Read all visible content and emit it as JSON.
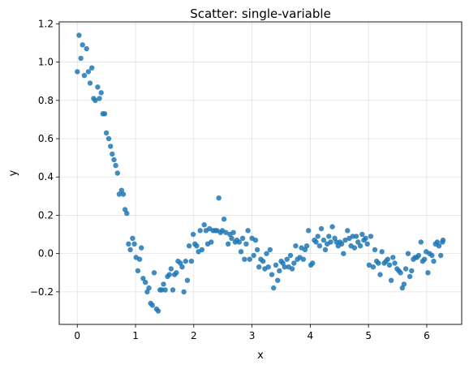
{
  "chart_data": {
    "type": "scatter",
    "title": "Scatter: single-variable",
    "xlabel": "x",
    "ylabel": "y",
    "xlim": [
      -0.31,
      6.6
    ],
    "ylim": [
      -0.37,
      1.21
    ],
    "xticks": [
      0,
      1,
      2,
      3,
      4,
      5,
      6
    ],
    "yticks": [
      -0.2,
      0.0,
      0.2,
      0.4,
      0.6,
      0.8,
      1.0,
      1.2
    ],
    "ytick_labels": [
      "−0.2",
      "0.0",
      "0.2",
      "0.4",
      "0.6",
      "0.8",
      "1.0",
      "1.2"
    ],
    "grid": true,
    "point_color": "#1f77b4",
    "points": [
      [
        0.0,
        0.95
      ],
      [
        0.03,
        1.14
      ],
      [
        0.06,
        1.02
      ],
      [
        0.09,
        1.09
      ],
      [
        0.12,
        0.93
      ],
      [
        0.16,
        1.07
      ],
      [
        0.19,
        0.95
      ],
      [
        0.22,
        0.89
      ],
      [
        0.25,
        0.97
      ],
      [
        0.28,
        0.81
      ],
      [
        0.31,
        0.8
      ],
      [
        0.35,
        0.87
      ],
      [
        0.38,
        0.81
      ],
      [
        0.41,
        0.84
      ],
      [
        0.44,
        0.73
      ],
      [
        0.47,
        0.73
      ],
      [
        0.5,
        0.63
      ],
      [
        0.54,
        0.6
      ],
      [
        0.57,
        0.56
      ],
      [
        0.6,
        0.52
      ],
      [
        0.63,
        0.49
      ],
      [
        0.66,
        0.46
      ],
      [
        0.69,
        0.42
      ],
      [
        0.72,
        0.31
      ],
      [
        0.76,
        0.33
      ],
      [
        0.79,
        0.31
      ],
      [
        0.82,
        0.23
      ],
      [
        0.85,
        0.21
      ],
      [
        0.88,
        0.05
      ],
      [
        0.91,
        0.02
      ],
      [
        0.95,
        0.08
      ],
      [
        0.98,
        0.05
      ],
      [
        1.01,
        -0.02
      ],
      [
        1.04,
        -0.09
      ],
      [
        1.07,
        -0.03
      ],
      [
        1.1,
        0.03
      ],
      [
        1.13,
        -0.13
      ],
      [
        1.17,
        -0.15
      ],
      [
        1.2,
        -0.2
      ],
      [
        1.23,
        -0.18
      ],
      [
        1.26,
        -0.26
      ],
      [
        1.29,
        -0.27
      ],
      [
        1.32,
        -0.1
      ],
      [
        1.36,
        -0.29
      ],
      [
        1.39,
        -0.3
      ],
      [
        1.42,
        -0.19
      ],
      [
        1.45,
        -0.19
      ],
      [
        1.48,
        -0.16
      ],
      [
        1.51,
        -0.19
      ],
      [
        1.55,
        -0.12
      ],
      [
        1.58,
        -0.11
      ],
      [
        1.61,
        -0.08
      ],
      [
        1.64,
        -0.19
      ],
      [
        1.67,
        -0.11
      ],
      [
        1.7,
        -0.1
      ],
      [
        1.73,
        -0.04
      ],
      [
        1.77,
        -0.05
      ],
      [
        1.8,
        -0.07
      ],
      [
        1.83,
        -0.2
      ],
      [
        1.86,
        -0.04
      ],
      [
        1.89,
        -0.14
      ],
      [
        1.92,
        0.04
      ],
      [
        1.96,
        -0.04
      ],
      [
        1.99,
        0.1
      ],
      [
        2.02,
        0.05
      ],
      [
        2.05,
        0.04
      ],
      [
        2.08,
        0.01
      ],
      [
        2.11,
        0.12
      ],
      [
        2.14,
        0.02
      ],
      [
        2.18,
        0.15
      ],
      [
        2.21,
        0.12
      ],
      [
        2.24,
        0.05
      ],
      [
        2.27,
        0.13
      ],
      [
        2.3,
        0.06
      ],
      [
        2.33,
        0.12
      ],
      [
        2.37,
        0.12
      ],
      [
        2.4,
        0.12
      ],
      [
        2.43,
        0.29
      ],
      [
        2.46,
        0.11
      ],
      [
        2.49,
        0.12
      ],
      [
        2.52,
        0.18
      ],
      [
        2.55,
        0.11
      ],
      [
        2.59,
        0.05
      ],
      [
        2.62,
        0.1
      ],
      [
        2.65,
        0.08
      ],
      [
        2.68,
        0.11
      ],
      [
        2.71,
        0.06
      ],
      [
        2.74,
        0.07
      ],
      [
        2.78,
        0.06
      ],
      [
        2.81,
        0.01
      ],
      [
        2.84,
        0.08
      ],
      [
        2.87,
        -0.03
      ],
      [
        2.9,
        0.05
      ],
      [
        2.93,
        0.12
      ],
      [
        2.96,
        -0.03
      ],
      [
        3.0,
        0.08
      ],
      [
        3.03,
        -0.01
      ],
      [
        3.06,
        0.07
      ],
      [
        3.09,
        0.02
      ],
      [
        3.12,
        -0.07
      ],
      [
        3.15,
        -0.03
      ],
      [
        3.19,
        -0.04
      ],
      [
        3.22,
        -0.08
      ],
      [
        3.25,
        0.0
      ],
      [
        3.28,
        -0.07
      ],
      [
        3.31,
        0.02
      ],
      [
        3.34,
        -0.11
      ],
      [
        3.37,
        -0.18
      ],
      [
        3.41,
        -0.06
      ],
      [
        3.44,
        -0.14
      ],
      [
        3.47,
        -0.09
      ],
      [
        3.5,
        -0.04
      ],
      [
        3.53,
        -0.05
      ],
      [
        3.56,
        -0.07
      ],
      [
        3.6,
        -0.03
      ],
      [
        3.63,
        -0.07
      ],
      [
        3.66,
        -0.01
      ],
      [
        3.69,
        -0.08
      ],
      [
        3.72,
        -0.05
      ],
      [
        3.75,
        0.04
      ],
      [
        3.78,
        -0.03
      ],
      [
        3.82,
        -0.02
      ],
      [
        3.85,
        0.03
      ],
      [
        3.88,
        -0.03
      ],
      [
        3.91,
        0.02
      ],
      [
        3.94,
        0.04
      ],
      [
        3.97,
        0.12
      ],
      [
        4.01,
        -0.06
      ],
      [
        4.04,
        -0.05
      ],
      [
        4.07,
        0.07
      ],
      [
        4.1,
        0.06
      ],
      [
        4.13,
        0.09
      ],
      [
        4.16,
        0.04
      ],
      [
        4.19,
        0.13
      ],
      [
        4.23,
        0.07
      ],
      [
        4.26,
        0.02
      ],
      [
        4.29,
        0.05
      ],
      [
        4.32,
        0.09
      ],
      [
        4.35,
        0.06
      ],
      [
        4.38,
        0.14
      ],
      [
        4.42,
        0.08
      ],
      [
        4.45,
        0.06
      ],
      [
        4.48,
        0.04
      ],
      [
        4.51,
        0.06
      ],
      [
        4.54,
        0.05
      ],
      [
        4.57,
        0.0
      ],
      [
        4.6,
        0.07
      ],
      [
        4.64,
        0.12
      ],
      [
        4.67,
        0.08
      ],
      [
        4.7,
        0.04
      ],
      [
        4.73,
        0.09
      ],
      [
        4.76,
        0.03
      ],
      [
        4.79,
        0.09
      ],
      [
        4.82,
        0.06
      ],
      [
        4.86,
        0.04
      ],
      [
        4.89,
        0.1
      ],
      [
        4.92,
        0.07
      ],
      [
        4.95,
        0.08
      ],
      [
        4.98,
        0.05
      ],
      [
        5.01,
        -0.06
      ],
      [
        5.04,
        0.09
      ],
      [
        5.08,
        -0.07
      ],
      [
        5.11,
        0.02
      ],
      [
        5.14,
        -0.04
      ],
      [
        5.17,
        -0.05
      ],
      [
        5.2,
        -0.11
      ],
      [
        5.23,
        0.01
      ],
      [
        5.27,
        -0.05
      ],
      [
        5.3,
        -0.04
      ],
      [
        5.33,
        -0.03
      ],
      [
        5.36,
        -0.06
      ],
      [
        5.39,
        -0.14
      ],
      [
        5.42,
        -0.02
      ],
      [
        5.45,
        -0.05
      ],
      [
        5.49,
        -0.08
      ],
      [
        5.52,
        -0.09
      ],
      [
        5.55,
        -0.1
      ],
      [
        5.58,
        -0.18
      ],
      [
        5.61,
        -0.16
      ],
      [
        5.64,
        -0.08
      ],
      [
        5.68,
        0.0
      ],
      [
        5.71,
        -0.12
      ],
      [
        5.74,
        -0.09
      ],
      [
        5.77,
        -0.03
      ],
      [
        5.8,
        -0.02
      ],
      [
        5.83,
        -0.02
      ],
      [
        5.86,
        -0.01
      ],
      [
        5.9,
        0.06
      ],
      [
        5.93,
        -0.04
      ],
      [
        5.96,
        -0.03
      ],
      [
        5.99,
        0.01
      ],
      [
        6.02,
        -0.1
      ],
      [
        6.05,
        0.0
      ],
      [
        6.09,
        -0.01
      ],
      [
        6.12,
        -0.04
      ],
      [
        6.15,
        0.05
      ],
      [
        6.18,
        0.06
      ],
      [
        6.21,
        0.04
      ],
      [
        6.24,
        -0.01
      ],
      [
        6.27,
        0.06
      ],
      [
        6.28,
        0.07
      ]
    ]
  }
}
